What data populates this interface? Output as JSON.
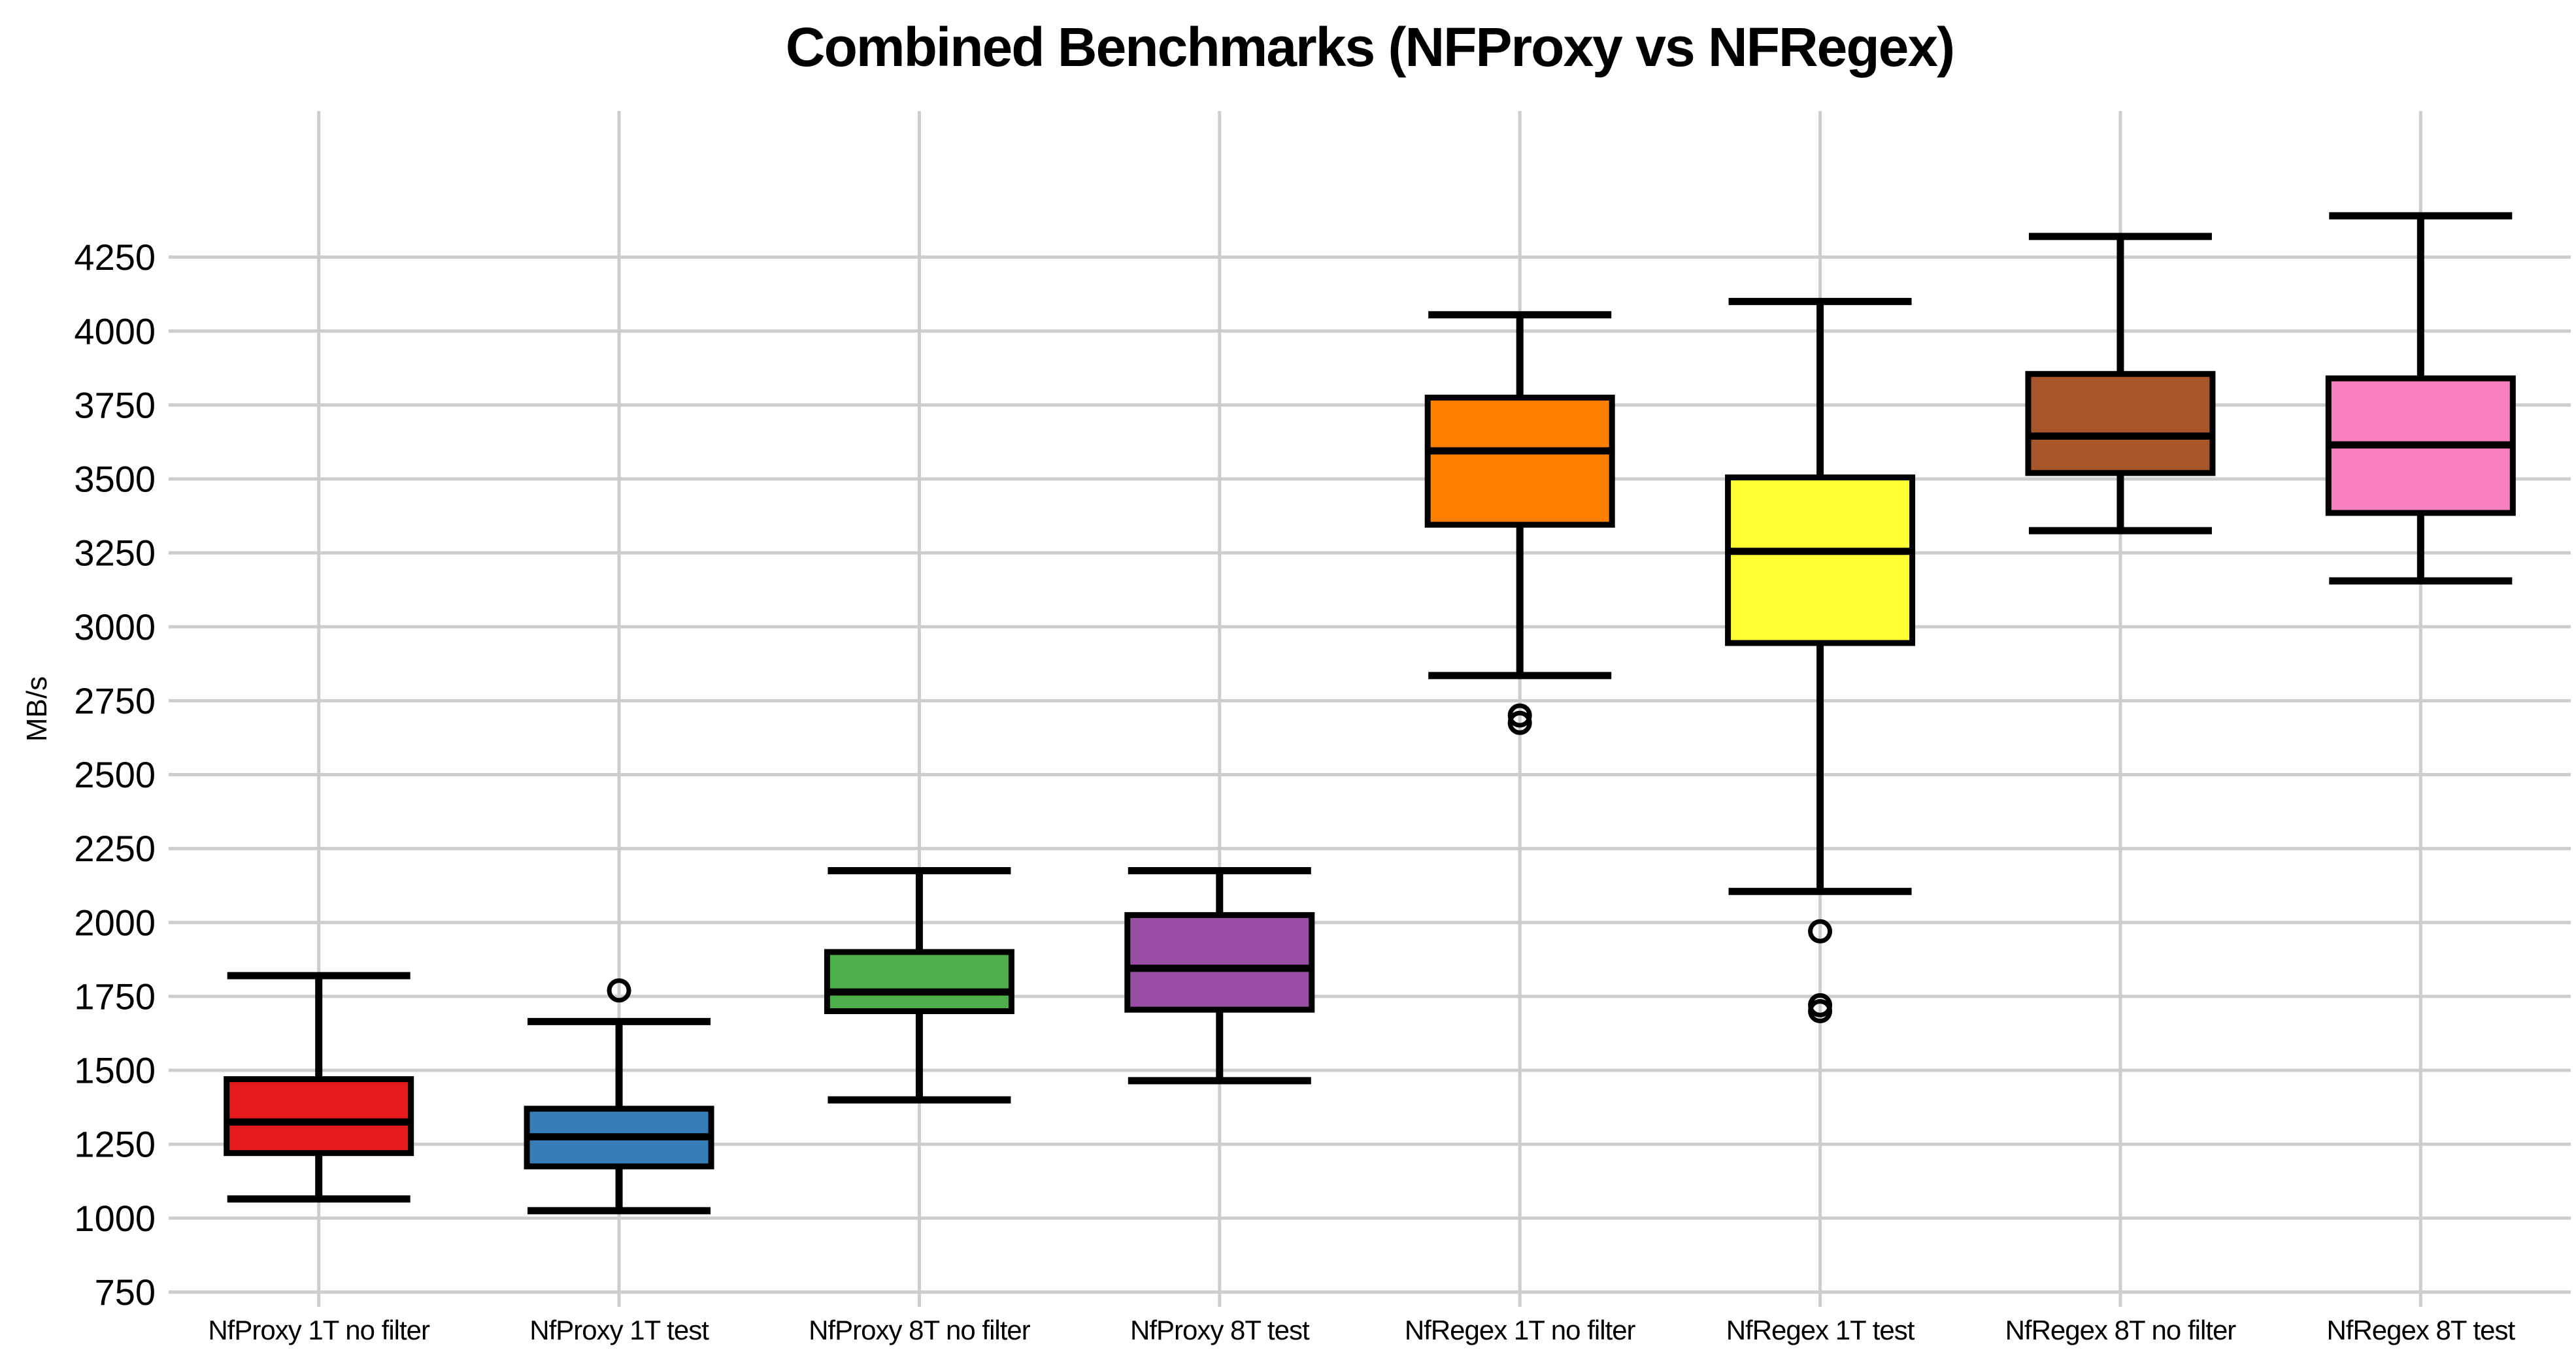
{
  "chart_data": {
    "type": "boxplot",
    "title": "Combined Benchmarks (NFProxy vs NFRegex)",
    "xlabel": "",
    "ylabel": "MB/s",
    "ylim": [
      700,
      4744
    ],
    "y_ticks": [
      750,
      1000,
      1250,
      1500,
      1750,
      2000,
      2250,
      2500,
      2750,
      3000,
      3250,
      3500,
      3750,
      4000,
      4250
    ],
    "grid": {
      "horizontal": true,
      "vertical": true,
      "color": "#cdcdcd"
    },
    "legend": "none",
    "categories": [
      "NfProxy 1T no filter",
      "NfProxy 1T test",
      "NfProxy 8T no filter",
      "NfProxy 8T test",
      "NfRegex 1T no filter",
      "NfRegex 1T test",
      "NfRegex 8T no filter",
      "NfRegex 8T test"
    ],
    "series": [
      {
        "label": "NfProxy 1T no filter",
        "color": "#e41a1c",
        "whisker_low": 1065,
        "q1": 1220,
        "median": 1325,
        "q3": 1470,
        "whisker_high": 1820,
        "outliers": []
      },
      {
        "label": "NfProxy 1T test",
        "color": "#377eb8",
        "whisker_low": 1025,
        "q1": 1175,
        "median": 1275,
        "q3": 1370,
        "whisker_high": 1665,
        "outliers": [
          1770
        ]
      },
      {
        "label": "NfProxy 8T no filter",
        "color": "#4daf4a",
        "whisker_low": 1400,
        "q1": 1700,
        "median": 1765,
        "q3": 1900,
        "whisker_high": 2175,
        "outliers": []
      },
      {
        "label": "NfProxy 8T test",
        "color": "#984ea3",
        "whisker_low": 1465,
        "q1": 1705,
        "median": 1845,
        "q3": 2025,
        "whisker_high": 2175,
        "outliers": []
      },
      {
        "label": "NfRegex 1T no filter",
        "color": "#ff7f00",
        "whisker_low": 2835,
        "q1": 3345,
        "median": 3595,
        "q3": 3775,
        "whisker_high": 4055,
        "outliers": [
          2700,
          2675
        ]
      },
      {
        "label": "NfRegex 1T test",
        "color": "#ffff33",
        "whisker_low": 2105,
        "q1": 2945,
        "median": 3255,
        "q3": 3505,
        "whisker_high": 4100,
        "outliers": [
          1970,
          1720,
          1700
        ]
      },
      {
        "label": "NfRegex 8T no filter",
        "color": "#a65628",
        "whisker_low": 3325,
        "q1": 3520,
        "median": 3645,
        "q3": 3855,
        "whisker_high": 4320,
        "outliers": []
      },
      {
        "label": "NfRegex 8T test",
        "color": "#f781bf",
        "whisker_low": 3155,
        "q1": 3385,
        "median": 3615,
        "q3": 3840,
        "whisker_high": 4390,
        "outliers": []
      }
    ]
  }
}
